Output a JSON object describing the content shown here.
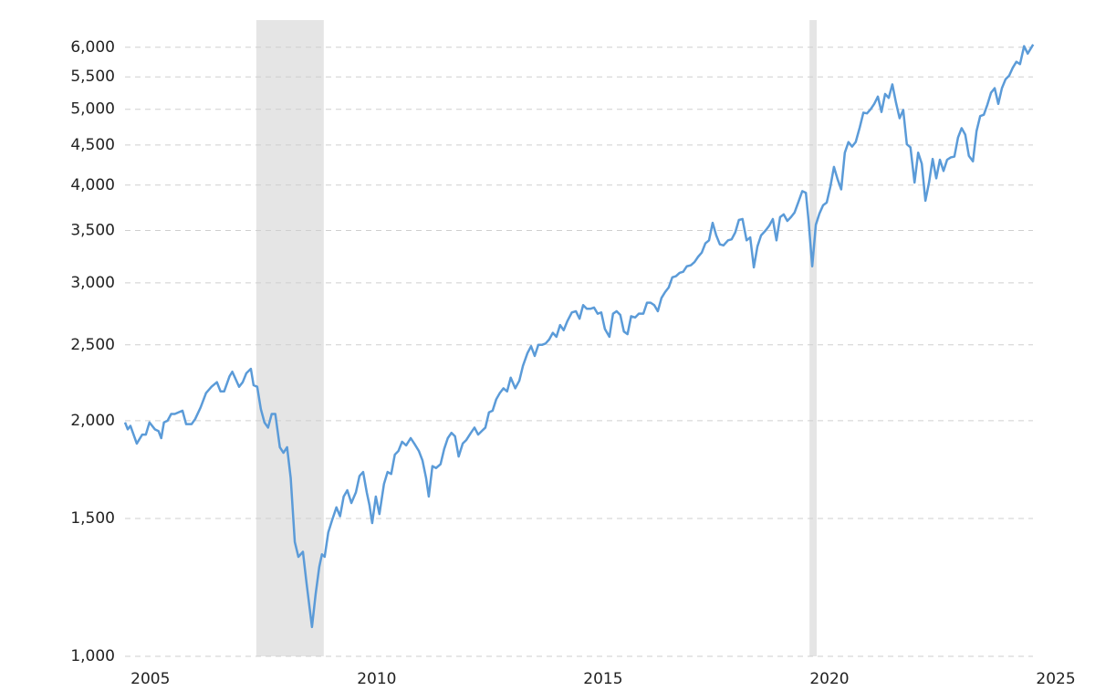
{
  "chart_data": {
    "type": "line",
    "yscale": "log",
    "grid": true,
    "color": "#5b9bd8",
    "shade_color": "#e5e5e5",
    "xlim": [
      2004.44,
      2025.06
    ],
    "xticks": [
      2005,
      2010,
      2015,
      2020,
      2025
    ],
    "ylim": [
      1000,
      6500
    ],
    "yticks": [
      {
        "value": 1000,
        "label": "1,000"
      },
      {
        "value": 1500,
        "label": "1,500"
      },
      {
        "value": 2000,
        "label": "2,000"
      },
      {
        "value": 2500,
        "label": "2,500"
      },
      {
        "value": 3000,
        "label": "3,000"
      },
      {
        "value": 3500,
        "label": "3,500"
      },
      {
        "value": 4000,
        "label": "4,000"
      },
      {
        "value": 4500,
        "label": "4,500"
      },
      {
        "value": 5000,
        "label": "5,000"
      },
      {
        "value": 5500,
        "label": "5,500"
      },
      {
        "value": 6000,
        "label": "6,000"
      }
    ],
    "shaded_periods": [
      [
        2007.34,
        2008.83
      ],
      [
        2019.56,
        2019.72
      ]
    ],
    "x": [
      2004.44,
      2004.5,
      2004.56,
      2004.7,
      2004.82,
      2004.9,
      2004.98,
      2005.1,
      2005.18,
      2005.24,
      2005.3,
      2005.38,
      2005.46,
      2005.54,
      2005.71,
      2005.79,
      2005.91,
      2005.99,
      2006.11,
      2006.23,
      2006.35,
      2006.47,
      2006.55,
      2006.63,
      2006.75,
      2006.81,
      2006.87,
      2006.96,
      2007.04,
      2007.12,
      2007.22,
      2007.28,
      2007.36,
      2007.44,
      2007.52,
      2007.6,
      2007.68,
      2007.76,
      2007.86,
      2007.94,
      2008.02,
      2008.1,
      2008.19,
      2008.27,
      2008.37,
      2008.45,
      2008.57,
      2008.65,
      2008.73,
      2008.79,
      2008.85,
      2008.93,
      2009.01,
      2009.11,
      2009.19,
      2009.27,
      2009.35,
      2009.44,
      2009.54,
      2009.62,
      2009.7,
      2009.78,
      2009.84,
      2009.9,
      2009.98,
      2010.06,
      2010.16,
      2010.24,
      2010.32,
      2010.4,
      2010.48,
      2010.56,
      2010.65,
      2010.75,
      2010.83,
      2010.93,
      2011.01,
      2011.09,
      2011.15,
      2011.23,
      2011.31,
      2011.41,
      2011.49,
      2011.57,
      2011.65,
      2011.73,
      2011.81,
      2011.9,
      2011.98,
      2012.08,
      2012.16,
      2012.24,
      2012.32,
      2012.4,
      2012.48,
      2012.56,
      2012.64,
      2012.72,
      2012.8,
      2012.88,
      2012.96,
      2013.06,
      2013.15,
      2013.23,
      2013.33,
      2013.41,
      2013.49,
      2013.57,
      2013.65,
      2013.73,
      2013.81,
      2013.89,
      2013.97,
      2014.05,
      2014.13,
      2014.21,
      2014.31,
      2014.4,
      2014.48,
      2014.56,
      2014.64,
      2014.72,
      2014.8,
      2014.88,
      2014.96,
      2015.04,
      2015.14,
      2015.22,
      2015.3,
      2015.38,
      2015.46,
      2015.54,
      2015.62,
      2015.71,
      2015.79,
      2015.89,
      2015.97,
      2016.05,
      2016.13,
      2016.21,
      2016.29,
      2016.37,
      2016.45,
      2016.53,
      2016.61,
      2016.69,
      2016.77,
      2016.85,
      2016.94,
      2017.02,
      2017.1,
      2017.18,
      2017.26,
      2017.34,
      2017.42,
      2017.5,
      2017.58,
      2017.66,
      2017.76,
      2017.84,
      2017.92,
      2018.0,
      2018.08,
      2018.17,
      2018.25,
      2018.33,
      2018.41,
      2018.49,
      2018.59,
      2018.67,
      2018.75,
      2018.83,
      2018.91,
      2018.99,
      2019.07,
      2019.15,
      2019.23,
      2019.31,
      2019.4,
      2019.48,
      2019.54,
      2019.62,
      2019.7,
      2019.78,
      2019.86,
      2019.94,
      2020.02,
      2020.1,
      2020.18,
      2020.26,
      2020.34,
      2020.42,
      2020.5,
      2020.58,
      2020.67,
      2020.75,
      2020.83,
      2020.91,
      2020.99,
      2021.07,
      2021.15,
      2021.23,
      2021.31,
      2021.39,
      2021.47,
      2021.55,
      2021.63,
      2021.71,
      2021.79,
      2021.88,
      2021.96,
      2022.04,
      2022.12,
      2022.2,
      2022.28,
      2022.36,
      2022.44,
      2022.52,
      2022.6,
      2022.68,
      2022.76,
      2022.84,
      2022.92,
      2023.0,
      2023.08,
      2023.17,
      2023.25,
      2023.33,
      2023.41,
      2023.49,
      2023.57,
      2023.65,
      2023.73,
      2023.81,
      2023.89,
      2023.97,
      2024.05,
      2024.13,
      2024.21,
      2024.3,
      2024.38,
      2024.5
    ],
    "values": [
      1990,
      1950,
      1970,
      1870,
      1920,
      1920,
      1990,
      1950,
      1940,
      1900,
      1990,
      2000,
      2040,
      2040,
      2060,
      1980,
      1980,
      2010,
      2080,
      2170,
      2210,
      2240,
      2180,
      2180,
      2280,
      2310,
      2270,
      2210,
      2240,
      2300,
      2330,
      2220,
      2210,
      2070,
      1990,
      1960,
      2040,
      2040,
      1850,
      1820,
      1850,
      1690,
      1400,
      1340,
      1360,
      1240,
      1090,
      1200,
      1300,
      1350,
      1340,
      1440,
      1490,
      1550,
      1510,
      1600,
      1630,
      1570,
      1620,
      1700,
      1720,
      1620,
      1560,
      1480,
      1600,
      1520,
      1660,
      1720,
      1710,
      1810,
      1830,
      1880,
      1860,
      1900,
      1870,
      1830,
      1780,
      1690,
      1600,
      1750,
      1740,
      1760,
      1840,
      1900,
      1930,
      1910,
      1800,
      1870,
      1890,
      1930,
      1960,
      1920,
      1940,
      1960,
      2050,
      2060,
      2130,
      2170,
      2200,
      2180,
      2270,
      2200,
      2250,
      2350,
      2440,
      2490,
      2420,
      2500,
      2500,
      2510,
      2540,
      2590,
      2560,
      2650,
      2610,
      2680,
      2750,
      2760,
      2700,
      2810,
      2780,
      2780,
      2790,
      2740,
      2750,
      2620,
      2560,
      2740,
      2760,
      2730,
      2600,
      2580,
      2720,
      2710,
      2740,
      2740,
      2830,
      2830,
      2810,
      2760,
      2870,
      2920,
      2960,
      3050,
      3060,
      3090,
      3100,
      3150,
      3160,
      3190,
      3240,
      3280,
      3370,
      3400,
      3580,
      3450,
      3360,
      3350,
      3400,
      3410,
      3480,
      3610,
      3620,
      3400,
      3430,
      3140,
      3340,
      3450,
      3500,
      3550,
      3620,
      3400,
      3640,
      3670,
      3600,
      3640,
      3690,
      3800,
      3930,
      3910,
      3600,
      3150,
      3560,
      3680,
      3770,
      3800,
      3980,
      4220,
      4070,
      3950,
      4400,
      4540,
      4480,
      4540,
      4740,
      4950,
      4940,
      5000,
      5080,
      5190,
      4960,
      5230,
      5170,
      5380,
      5100,
      4870,
      4990,
      4510,
      4470,
      4030,
      4400,
      4260,
      3820,
      4030,
      4320,
      4080,
      4310,
      4170,
      4310,
      4340,
      4350,
      4600,
      4730,
      4640,
      4360,
      4290,
      4690,
      4900,
      4920,
      5070,
      5250,
      5320,
      5080,
      5320,
      5460,
      5520,
      5650,
      5750,
      5710,
      6020,
      5890,
      6050
    ]
  }
}
